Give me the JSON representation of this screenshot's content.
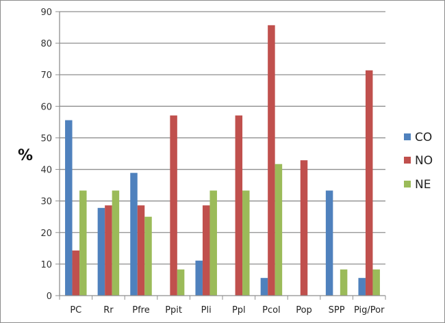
{
  "chart_data": {
    "type": "bar",
    "title": "",
    "xlabel": "",
    "ylabel": "%",
    "ylim": [
      0,
      90
    ],
    "yticks": [
      0,
      10,
      20,
      30,
      40,
      50,
      60,
      70,
      80,
      90
    ],
    "grid": true,
    "legend_position": "right",
    "categories": [
      "PC",
      "Rr",
      "Pfre",
      "Ppit",
      "Pli",
      "Ppl",
      "Pcol",
      "Pop",
      "SPP",
      "Pig/Por"
    ],
    "series": [
      {
        "name": "CO",
        "color": "#4f81bd",
        "values": [
          55.6,
          27.8,
          38.9,
          0,
          11.1,
          0,
          5.6,
          0,
          33.3,
          5.6
        ]
      },
      {
        "name": "NO",
        "color": "#c0504d",
        "values": [
          14.3,
          28.6,
          28.6,
          57.1,
          28.6,
          57.1,
          85.7,
          42.9,
          0,
          71.4
        ]
      },
      {
        "name": "NE",
        "color": "#9bbb59",
        "values": [
          33.3,
          33.3,
          25.0,
          8.3,
          33.3,
          33.3,
          41.7,
          0,
          8.3,
          8.3
        ]
      }
    ]
  }
}
